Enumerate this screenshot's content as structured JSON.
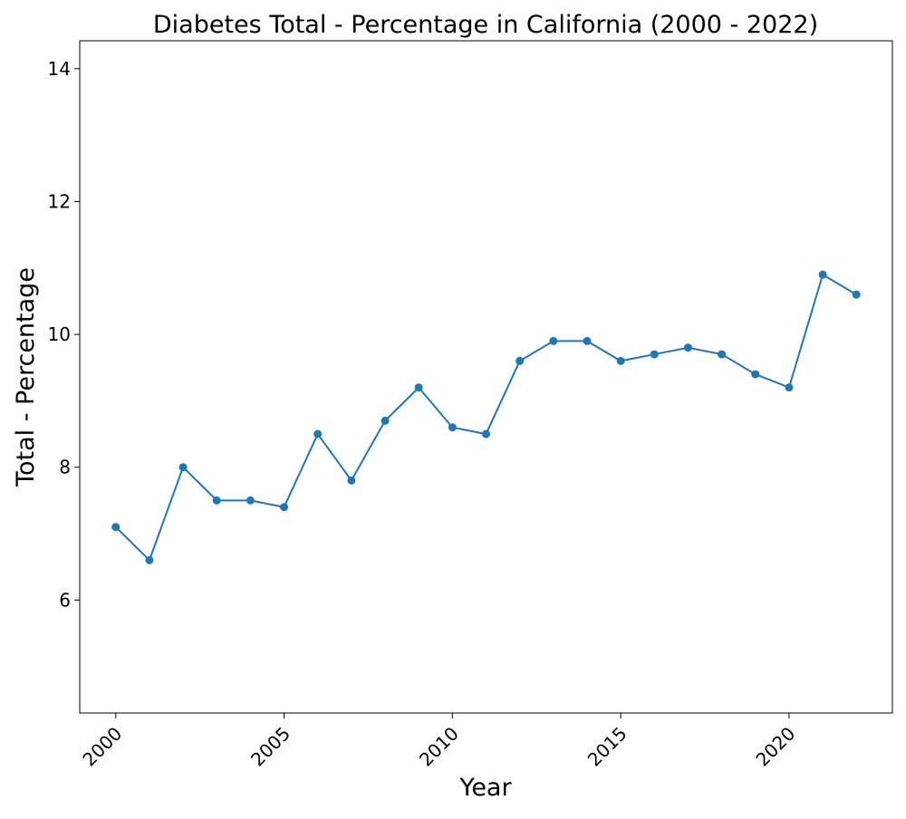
{
  "chart_data": {
    "type": "line",
    "title": "Diabetes Total - Percentage in California (2000 - 2022)",
    "xlabel": "Year",
    "ylabel": "Total - Percentage",
    "x": [
      2000,
      2001,
      2002,
      2003,
      2004,
      2005,
      2006,
      2007,
      2008,
      2009,
      2010,
      2011,
      2012,
      2013,
      2014,
      2015,
      2016,
      2017,
      2018,
      2019,
      2020,
      2021,
      2022
    ],
    "series": [
      {
        "values": [
          7.1,
          6.6,
          8.0,
          7.5,
          7.5,
          7.4,
          8.5,
          7.8,
          8.7,
          9.2,
          8.6,
          8.5,
          9.6,
          9.9,
          9.9,
          9.6,
          9.7,
          9.8,
          9.7,
          9.4,
          9.2,
          10.9,
          10.6
        ],
        "color": "#1f77b4"
      }
    ],
    "xticks": [
      2000,
      2005,
      2010,
      2015,
      2020
    ],
    "yticks": [
      6,
      8,
      10,
      12,
      14
    ],
    "xlim": [
      1998.93,
      2023.07
    ],
    "ylim": [
      4.3,
      14.42
    ],
    "grid": false,
    "legend": "none",
    "markers": true
  }
}
